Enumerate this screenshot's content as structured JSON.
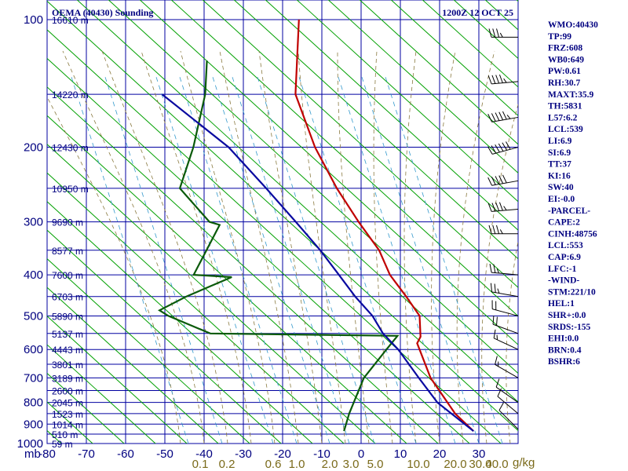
{
  "chart_data": {
    "type": "skew-t sounding",
    "title": "OEMA (40430) Sounding",
    "valid_time": "1200Z 12 OCT 25",
    "pressure_axis": {
      "unit_label": "mb",
      "ticks": [
        100,
        200,
        300,
        400,
        500,
        600,
        700,
        800,
        900,
        1000
      ],
      "range": [
        100,
        1000
      ]
    },
    "temperature_axis": {
      "ticks": [
        -80,
        -70,
        -60,
        -50,
        -40,
        -30,
        -20,
        -10,
        0,
        10,
        20,
        30,
        40
      ],
      "range": [
        -80,
        40
      ]
    },
    "mixing_ratio": {
      "unit_label": "g/kg",
      "labels": [
        "0.1",
        "0.2",
        "0.6",
        "1.0",
        "2.0",
        "3.0",
        "5.0",
        "10.0",
        "20.0",
        "30.0",
        "40.0"
      ]
    },
    "height_labels": [
      {
        "p": 100,
        "label": "16610 m"
      },
      {
        "p": 150,
        "label": "14220 m"
      },
      {
        "p": 200,
        "label": "12430 m"
      },
      {
        "p": 250,
        "label": "10950 m"
      },
      {
        "p": 300,
        "label": "9690 m"
      },
      {
        "p": 350,
        "label": "8577 m"
      },
      {
        "p": 400,
        "label": "7600 m"
      },
      {
        "p": 450,
        "label": "6703 m"
      },
      {
        "p": 500,
        "label": "5890 m"
      },
      {
        "p": 550,
        "label": "5137 m"
      },
      {
        "p": 600,
        "label": "4443 m"
      },
      {
        "p": 650,
        "label": "3801 m"
      },
      {
        "p": 700,
        "label": "3189 m"
      },
      {
        "p": 750,
        "label": "2600 m"
      },
      {
        "p": 800,
        "label": "2045 m"
      },
      {
        "p": 850,
        "label": "1523 m"
      },
      {
        "p": 900,
        "label": "1014 m"
      },
      {
        "p": 950,
        "label": "510 m"
      },
      {
        "p": 1000,
        "label": "59 m"
      }
    ],
    "series": [
      {
        "name": "temperature",
        "color": "#c00000",
        "points": [
          {
            "p": 100,
            "t": -72
          },
          {
            "p": 150,
            "t": -63
          },
          {
            "p": 200,
            "t": -51
          },
          {
            "p": 250,
            "t": -40
          },
          {
            "p": 300,
            "t": -30
          },
          {
            "p": 350,
            "t": -21
          },
          {
            "p": 400,
            "t": -15
          },
          {
            "p": 450,
            "t": -8
          },
          {
            "p": 500,
            "t": -2
          },
          {
            "p": 560,
            "t": 1
          },
          {
            "p": 580,
            "t": 1
          },
          {
            "p": 700,
            "t": 9
          },
          {
            "p": 850,
            "t": 20
          },
          {
            "p": 935,
            "t": 27
          }
        ]
      },
      {
        "name": "dewpoint",
        "color": "#0a5a0a",
        "points": [
          {
            "p": 125,
            "t": -90
          },
          {
            "p": 150,
            "t": -86
          },
          {
            "p": 200,
            "t": -82
          },
          {
            "p": 250,
            "t": -80
          },
          {
            "p": 300,
            "t": -68
          },
          {
            "p": 305,
            "t": -65
          },
          {
            "p": 400,
            "t": -65
          },
          {
            "p": 405,
            "t": -55
          },
          {
            "p": 450,
            "t": -64
          },
          {
            "p": 485,
            "t": -69
          },
          {
            "p": 500,
            "t": -66
          },
          {
            "p": 550,
            "t": -53
          },
          {
            "p": 557,
            "t": -5
          },
          {
            "p": 600,
            "t": -6
          },
          {
            "p": 700,
            "t": -8
          },
          {
            "p": 850,
            "t": -7
          },
          {
            "p": 935,
            "t": -6
          }
        ]
      },
      {
        "name": "parcel",
        "color": "#0a0aa0",
        "points": [
          {
            "p": 150,
            "t": -97
          },
          {
            "p": 200,
            "t": -73
          },
          {
            "p": 250,
            "t": -58
          },
          {
            "p": 300,
            "t": -46
          },
          {
            "p": 350,
            "t": -36
          },
          {
            "p": 400,
            "t": -28
          },
          {
            "p": 450,
            "t": -21
          },
          {
            "p": 500,
            "t": -14
          },
          {
            "p": 550,
            "t": -9
          },
          {
            "p": 600,
            "t": -3
          },
          {
            "p": 700,
            "t": 6
          },
          {
            "p": 800,
            "t": 14
          },
          {
            "p": 935,
            "t": 27
          }
        ]
      }
    ],
    "indices": [
      "WMO:40430",
      "TP:99",
      "FRZ:608",
      "WB0:649",
      "PW:0.61",
      "RH:30.7",
      "MAXT:35.9",
      "TH:5831",
      "L57:6.2",
      "LCL:539",
      "LI:6.9",
      "SI:6.9",
      "TT:37",
      "KI:16",
      "SW:40",
      "EI:-0.0",
      "-PARCEL-",
      "CAPE:2",
      "CINH:48756",
      "LCL:553",
      "CAP:6.9",
      "LFC:-1",
      "-WIND-",
      "STM:221/10",
      "HEL:1",
      "SHR+:0.0",
      "SRDS:-155",
      "EHI:0.0",
      "BRN:0.4",
      "BSHR:6"
    ],
    "wind_barbs": [
      {
        "p": 110,
        "dir": 270,
        "spd": 35
      },
      {
        "p": 140,
        "dir": 275,
        "spd": 45
      },
      {
        "p": 170,
        "dir": 280,
        "spd": 55
      },
      {
        "p": 200,
        "dir": 285,
        "spd": 60
      },
      {
        "p": 240,
        "dir": 280,
        "spd": 50
      },
      {
        "p": 280,
        "dir": 275,
        "spd": 45
      },
      {
        "p": 320,
        "dir": 270,
        "spd": 35
      },
      {
        "p": 400,
        "dir": 265,
        "spd": 25
      },
      {
        "p": 450,
        "dir": 260,
        "spd": 25
      },
      {
        "p": 500,
        "dir": 255,
        "spd": 20
      },
      {
        "p": 550,
        "dir": 250,
        "spd": 20
      },
      {
        "p": 600,
        "dir": 245,
        "spd": 15
      },
      {
        "p": 700,
        "dir": 240,
        "spd": 15
      },
      {
        "p": 800,
        "dir": 235,
        "spd": 10
      },
      {
        "p": 850,
        "dir": 230,
        "spd": 10
      },
      {
        "p": 925,
        "dir": 225,
        "spd": 10
      }
    ],
    "colors": {
      "grid": "#0000a0",
      "dry_adiabat": "#00a000",
      "moist_adiabat": "#8a7a40",
      "mixing_line": "#3399cc",
      "text": "#000080",
      "mix_text": "#7a6a1a"
    }
  }
}
